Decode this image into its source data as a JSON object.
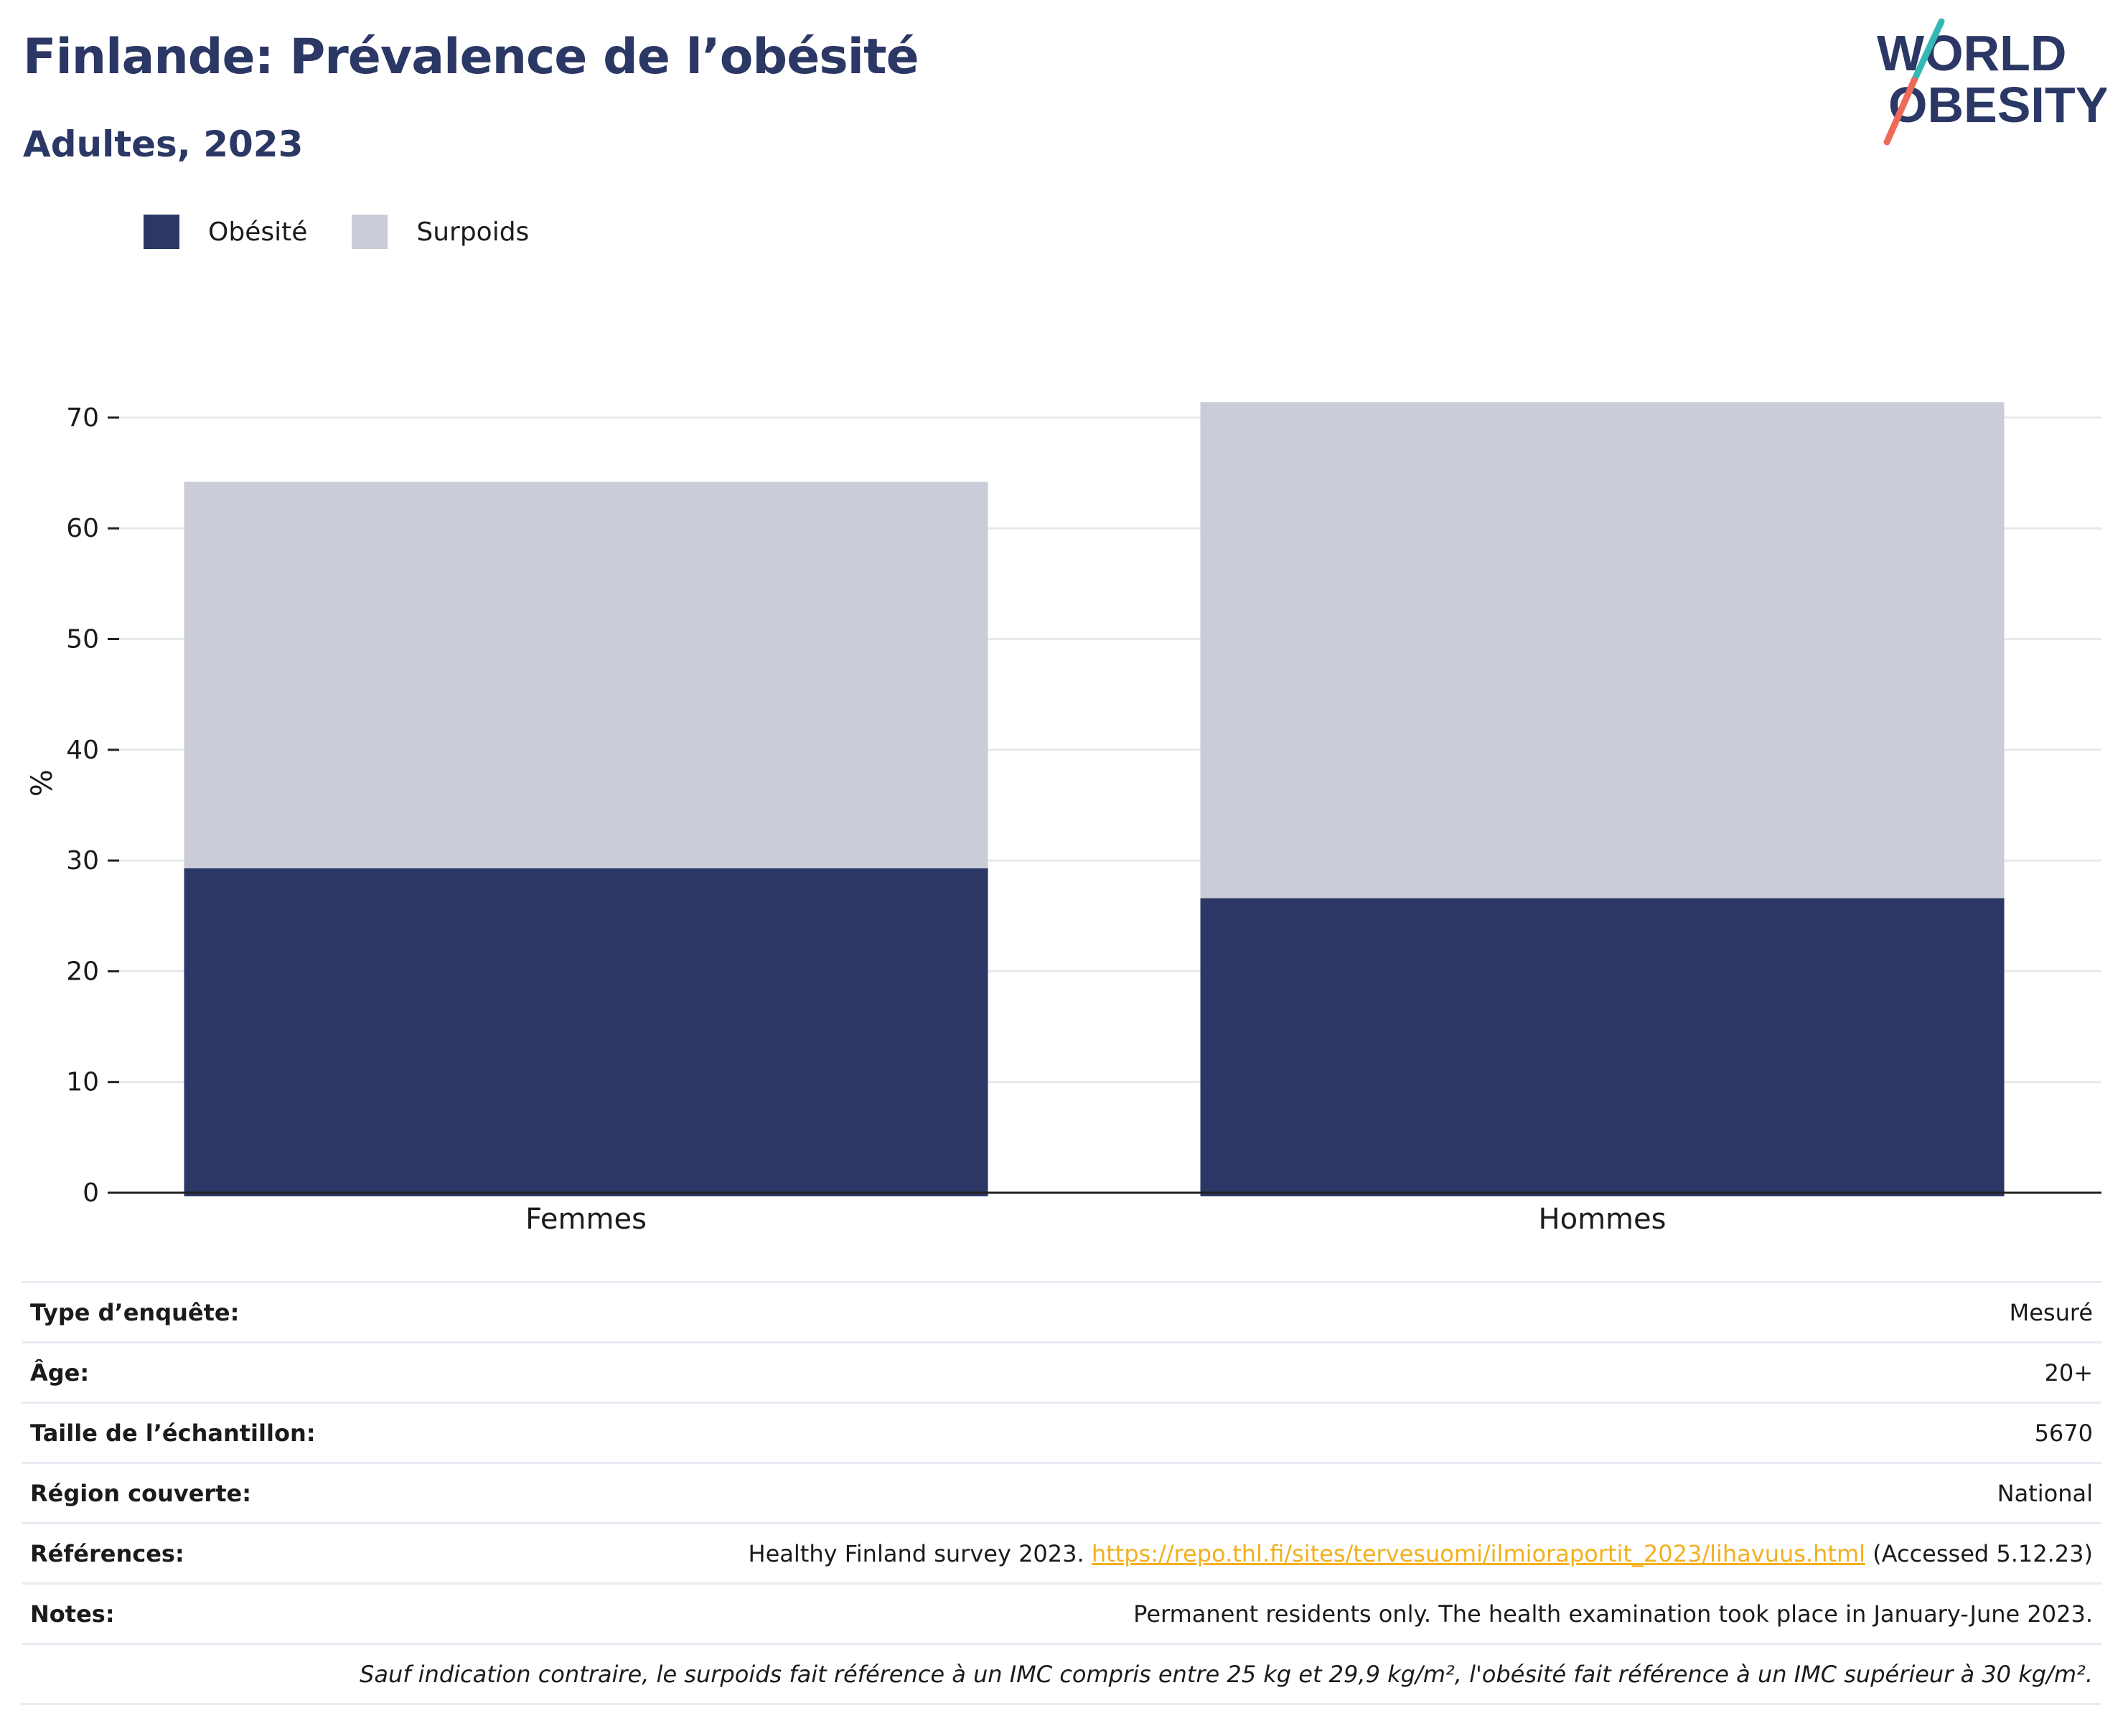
{
  "header": {
    "title": "Finlande: Prévalence de l’obésité",
    "subtitle": "Adultes, 2023"
  },
  "logo": {
    "line1": "WORLD",
    "line2": "OBESITY",
    "colors": {
      "text": "#2b3764",
      "slash_top": "#35b8b5",
      "slash_bottom": "#ed6a5a"
    }
  },
  "chart_data": {
    "type": "bar",
    "stacked": true,
    "categories": [
      "Femmes",
      "Hommes"
    ],
    "series": [
      {
        "name": "Obésité",
        "values": [
          29.3,
          26.6
        ],
        "color": "#2b3764"
      },
      {
        "name": "Surpoids",
        "values": [
          34.9,
          44.8
        ],
        "color": "#cacdd8"
      }
    ],
    "ylabel": "%",
    "ylim": [
      0,
      70
    ],
    "yticks": [
      0,
      10,
      20,
      30,
      40,
      50,
      60,
      70
    ],
    "grid": true,
    "legend_position": "top-left"
  },
  "info": {
    "rows": [
      {
        "label": "Type d’enquête:",
        "value": "Mesuré"
      },
      {
        "label": "Âge:",
        "value": "20+"
      },
      {
        "label": "Taille de l’échantillon:",
        "value": "5670"
      },
      {
        "label": "Région couverte:",
        "value": "National"
      }
    ],
    "references": {
      "label": "Références:",
      "prefix": "Healthy Finland survey 2023.",
      "link": "https://repo.thl.fi/sites/tervesuomi/ilmioraportit_2023/lihavuus.html",
      "suffix": "(Accessed 5.12.23)"
    },
    "notes": {
      "label": "Notes:",
      "value": "Permanent residents only. The health examination took place in January-June 2023."
    },
    "footnote": "Sauf indication contraire, le surpoids fait référence à un IMC compris entre 25 kg et 29,9 kg/m², l'obésité fait référence à un IMC supérieur à 30 kg/m²."
  }
}
